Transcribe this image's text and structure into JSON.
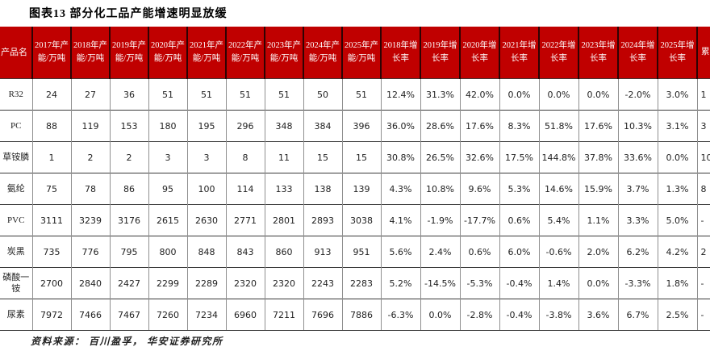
{
  "title": "图表13 部分化工品产能增速明显放缓",
  "source": "资料来源：  百川盈孚，  华安证券研究所",
  "colors": {
    "header_bg": "#c00000",
    "header_text": "#ffffff",
    "header_divider": "#2e0303",
    "body_vertical_border": "#8f8f8f",
    "body_horizontal_border": "#3a3a3a",
    "body_text": "#222222"
  },
  "table": {
    "columns": {
      "product": "产品名",
      "capacity": [
        "2017年产能/万吨",
        "2018年产能/万吨",
        "2019年产能/万吨",
        "2020年产能/万吨",
        "2021年产能/万吨",
        "2022年产能/万吨",
        "2023年产能/万吨",
        "2024年产能/万吨",
        "2025年产能/万吨"
      ],
      "growth": [
        "2018年增长率",
        "2019年增长率",
        "2020年增长率",
        "2021年增长率",
        "2022年增长率",
        "2023年增长率",
        "2024年增长率",
        "2025年增长率"
      ],
      "clipped": "累"
    },
    "rows": [
      {
        "name": "R32",
        "capacity": [
          "24",
          "27",
          "36",
          "51",
          "51",
          "51",
          "51",
          "50",
          "51"
        ],
        "growth": [
          "12.4%",
          "31.3%",
          "42.0%",
          "0.0%",
          "0.0%",
          "0.0%",
          "-2.0%",
          "3.0%"
        ],
        "clipped": "1"
      },
      {
        "name": "PC",
        "capacity": [
          "88",
          "119",
          "153",
          "180",
          "195",
          "296",
          "348",
          "384",
          "396"
        ],
        "growth": [
          "36.0%",
          "28.6%",
          "17.6%",
          "8.3%",
          "51.8%",
          "17.6%",
          "10.3%",
          "3.1%"
        ],
        "clipped": "3"
      },
      {
        "name": "草铵膦",
        "capacity": [
          "1",
          "2",
          "2",
          "3",
          "3",
          "8",
          "11",
          "15",
          "15"
        ],
        "growth": [
          "30.8%",
          "26.5%",
          "32.6%",
          "17.5%",
          "144.8%",
          "37.8%",
          "33.6%",
          "0.0%"
        ],
        "clipped": "10"
      },
      {
        "name": "氨纶",
        "capacity": [
          "75",
          "78",
          "86",
          "95",
          "100",
          "114",
          "133",
          "138",
          "139"
        ],
        "growth": [
          "4.3%",
          "10.8%",
          "9.6%",
          "5.3%",
          "14.6%",
          "15.9%",
          "3.7%",
          "1.3%"
        ],
        "clipped": "8"
      },
      {
        "name": "PVC",
        "capacity": [
          "3111",
          "3239",
          "3176",
          "2615",
          "2630",
          "2771",
          "2801",
          "2893",
          "3038"
        ],
        "growth": [
          "4.1%",
          "-1.9%",
          "-17.7%",
          "0.6%",
          "5.4%",
          "1.1%",
          "3.3%",
          "5.0%"
        ],
        "clipped": "-"
      },
      {
        "name": "炭黑",
        "capacity": [
          "735",
          "776",
          "795",
          "800",
          "848",
          "843",
          "860",
          "913",
          "951"
        ],
        "growth": [
          "5.6%",
          "2.4%",
          "0.6%",
          "6.0%",
          "-0.6%",
          "2.0%",
          "6.2%",
          "4.2%"
        ],
        "clipped": "2"
      },
      {
        "name": "磷酸一铵",
        "capacity": [
          "2700",
          "2840",
          "2427",
          "2299",
          "2289",
          "2320",
          "2320",
          "2243",
          "2283"
        ],
        "growth": [
          "5.2%",
          "-14.5%",
          "-5.3%",
          "-0.4%",
          "1.4%",
          "0.0%",
          "-3.3%",
          "1.8%"
        ],
        "clipped": "-"
      },
      {
        "name": "尿素",
        "capacity": [
          "7972",
          "7466",
          "7467",
          "7260",
          "7234",
          "6960",
          "7211",
          "7696",
          "7886"
        ],
        "growth": [
          "-6.3%",
          "0.0%",
          "-2.8%",
          "-0.4%",
          "-3.8%",
          "3.6%",
          "6.7%",
          "2.5%"
        ],
        "clipped": "-"
      }
    ]
  }
}
